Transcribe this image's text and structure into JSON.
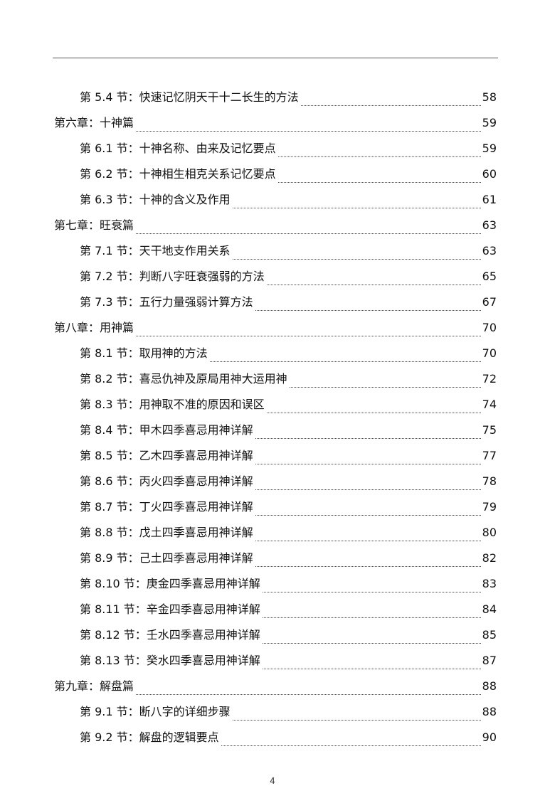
{
  "toc": [
    {
      "level": "section",
      "title": "第 5.4 节：快速记忆阴天干十二长生的方法",
      "page": "58"
    },
    {
      "level": "chapter",
      "title": "第六章：十神篇",
      "page": "59"
    },
    {
      "level": "section",
      "title": "第 6.1 节：十神名称、由来及记忆要点",
      "page": "59"
    },
    {
      "level": "section",
      "title": "第 6.2 节：十神相生相克关系记忆要点",
      "page": "60"
    },
    {
      "level": "section",
      "title": "第 6.3 节：十神的含义及作用",
      "page": "61"
    },
    {
      "level": "chapter",
      "title": "第七章：旺衰篇",
      "page": "63"
    },
    {
      "level": "section",
      "title": "第 7.1 节：天干地支作用关系",
      "page": "63"
    },
    {
      "level": "section",
      "title": "第 7.2 节：判断八字旺衰强弱的方法",
      "page": "65"
    },
    {
      "level": "section",
      "title": "第 7.3 节：五行力量强弱计算方法",
      "page": "67"
    },
    {
      "level": "chapter",
      "title": "第八章：用神篇",
      "page": "70"
    },
    {
      "level": "section",
      "title": "第 8.1 节：取用神的方法",
      "page": "70"
    },
    {
      "level": "section",
      "title": "第 8.2 节：喜忌仇神及原局用神大运用神",
      "page": "72"
    },
    {
      "level": "section",
      "title": "第 8.3 节：用神取不准的原因和误区",
      "page": "74"
    },
    {
      "level": "section",
      "title": "第 8.4 节：甲木四季喜忌用神详解",
      "page": "75"
    },
    {
      "level": "section",
      "title": "第 8.5 节：乙木四季喜忌用神详解",
      "page": "77"
    },
    {
      "level": "section",
      "title": "第 8.6 节：丙火四季喜忌用神详解",
      "page": "78"
    },
    {
      "level": "section",
      "title": "第 8.7 节：丁火四季喜忌用神详解",
      "page": "79"
    },
    {
      "level": "section",
      "title": "第 8.8 节：戊土四季喜忌用神详解",
      "page": "80"
    },
    {
      "level": "section",
      "title": "第 8.9 节：己土四季喜忌用神详解",
      "page": "82"
    },
    {
      "level": "section",
      "title": "第 8.10 节：庚金四季喜忌用神详解",
      "page": "83"
    },
    {
      "level": "section",
      "title": "第 8.11 节：辛金四季喜忌用神详解",
      "page": "84"
    },
    {
      "level": "section",
      "title": "第 8.12 节：壬水四季喜忌用神详解",
      "page": "85"
    },
    {
      "level": "section",
      "title": "第 8.13 节：癸水四季喜忌用神详解",
      "page": "87"
    },
    {
      "level": "chapter",
      "title": "第九章：解盘篇",
      "page": "88"
    },
    {
      "level": "section",
      "title": "第 9.1 节：断八字的详细步骤",
      "page": "88"
    },
    {
      "level": "section",
      "title": "第 9.2 节：解盘的逻辑要点",
      "page": "90"
    }
  ],
  "footer": {
    "page_number": "4"
  }
}
